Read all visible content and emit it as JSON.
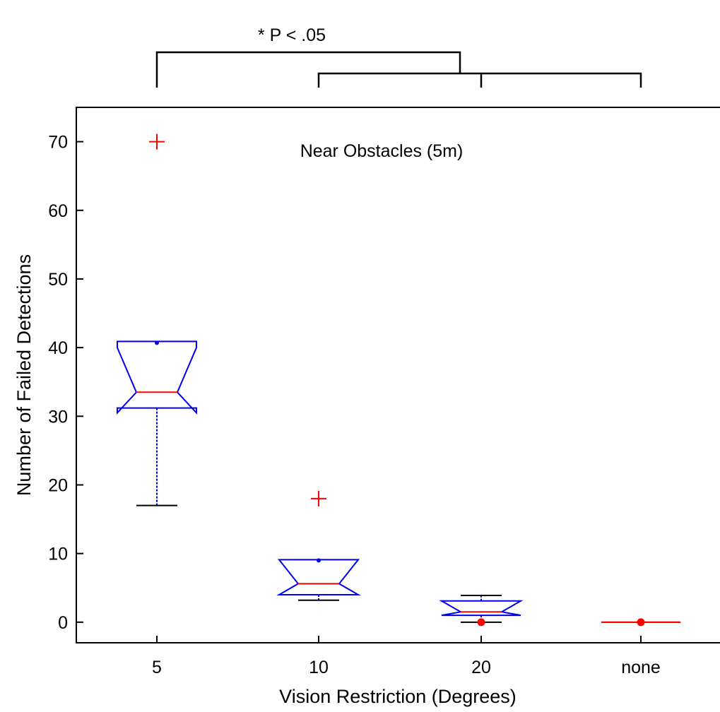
{
  "chart_data": {
    "type": "box",
    "title": "",
    "annotation": "Near Obstacles (5m)",
    "xlabel": "Vision Restriction (Degrees)",
    "ylabel": "Number of Failed Detections",
    "categories": [
      "5",
      "10",
      "20",
      "none"
    ],
    "ylim": [
      -3,
      75
    ],
    "yticks": [
      0,
      10,
      20,
      30,
      40,
      50,
      60,
      70
    ],
    "ytick_labels": [
      "0",
      "10",
      "20",
      "30",
      "40",
      "50",
      "60",
      "70"
    ],
    "notched": true,
    "boxes": [
      {
        "category": "5",
        "whisker_low": 17,
        "q1": 31.2,
        "median": 33.5,
        "q3": 40.9,
        "whisker_high": 40.9,
        "notch_low": 30.5,
        "notch_high": 40,
        "mean": 40.7,
        "outliers": [
          70
        ]
      },
      {
        "category": "10",
        "whisker_low": 3.2,
        "q1": 4,
        "median": 5.6,
        "q3": 9.1,
        "whisker_high": 9.1,
        "notch_low": 4,
        "notch_high": 9.1,
        "mean": 9,
        "outliers": [
          18
        ]
      },
      {
        "category": "20",
        "whisker_low": 0,
        "q1": 1,
        "median": 1.5,
        "q3": 3.1,
        "whisker_high": 3.9,
        "notch_low": 1,
        "notch_high": 3.1,
        "mean": 0,
        "outliers": []
      },
      {
        "category": "none",
        "whisker_low": 0,
        "q1": 0,
        "median": 0,
        "q3": 0,
        "whisker_high": 0,
        "notch_low": 0,
        "notch_high": 0,
        "mean": 0,
        "outliers": []
      }
    ],
    "significance": {
      "label": "* P < .05",
      "left": "5",
      "right_group": [
        "10",
        "20",
        "none"
      ]
    },
    "colors": {
      "box": "#0000ee",
      "median": "#ff0000",
      "outlier": "#ff0000",
      "whisker": "#000000",
      "mean": "#0000ee",
      "mean_zero": "#ff0000"
    },
    "grid": false,
    "legend": "none"
  }
}
